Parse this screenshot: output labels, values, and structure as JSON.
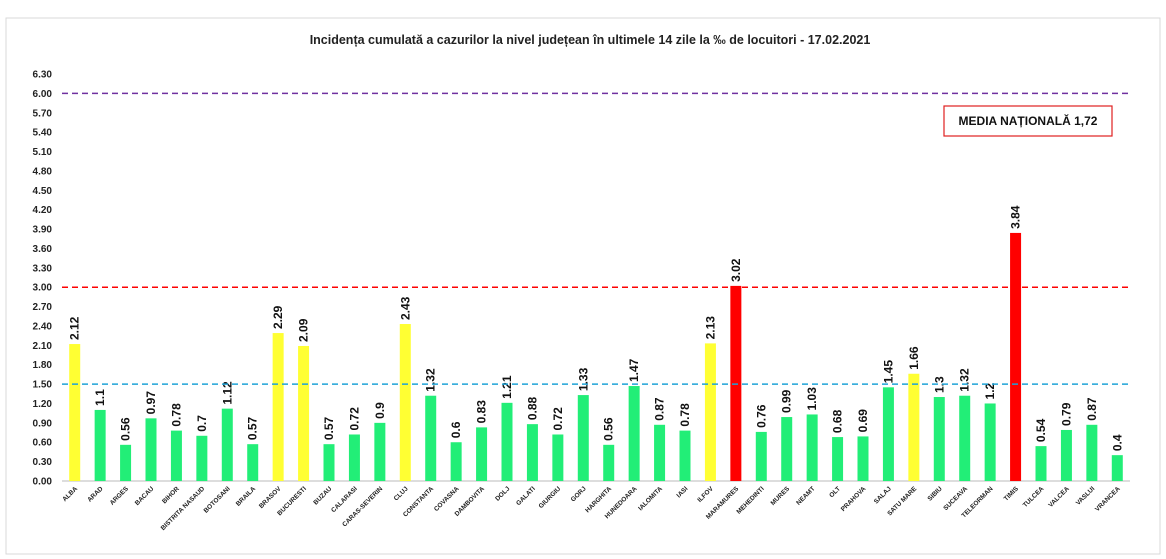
{
  "chart_data": {
    "type": "bar",
    "title": "Incidența cumulată a cazurilor la nivel județean în ultimele 14 zile la ‰ de locuitori - 17.02.2021",
    "categories": [
      "ALBA",
      "ARAD",
      "ARGES",
      "BACAU",
      "BIHOR",
      "BISTRITA NASAUD",
      "BOTOSANI",
      "BRAILA",
      "BRASOV",
      "BUCURESTI",
      "BUZAU",
      "CALARASI",
      "CARAS-SEVERIN",
      "CLUJ",
      "CONSTANTA",
      "COVASNA",
      "DAMBOVITA",
      "DOLJ",
      "GALATI",
      "GIURGIU",
      "GORJ",
      "HARGHITA",
      "HUNEDOARA",
      "IALOMITA",
      "IASI",
      "ILFOV",
      "MARAMURES",
      "MEHEDINTI",
      "MURES",
      "NEAMT",
      "OLT",
      "PRAHOVA",
      "SALAJ",
      "SATU MARE",
      "SIBIU",
      "SUCEAVA",
      "TELEORMAN",
      "TIMIS",
      "TULCEA",
      "VALCEA",
      "VASLUI",
      "VRANCEA"
    ],
    "values": [
      2.12,
      1.1,
      0.56,
      0.97,
      0.78,
      0.7,
      1.12,
      0.57,
      2.29,
      2.09,
      0.57,
      0.72,
      0.9,
      2.43,
      1.32,
      0.6,
      0.83,
      1.21,
      0.88,
      0.72,
      1.33,
      0.56,
      1.47,
      0.87,
      0.78,
      2.13,
      3.02,
      0.76,
      0.99,
      1.03,
      0.68,
      0.69,
      1.45,
      1.66,
      1.3,
      1.32,
      1.2,
      3.84,
      0.54,
      0.79,
      0.87,
      0.4
    ],
    "colors": [
      "#ffff33",
      "#22ee77",
      "#22ee77",
      "#22ee77",
      "#22ee77",
      "#22ee77",
      "#22ee77",
      "#22ee77",
      "#ffff33",
      "#ffff33",
      "#22ee77",
      "#22ee77",
      "#22ee77",
      "#ffff33",
      "#22ee77",
      "#22ee77",
      "#22ee77",
      "#22ee77",
      "#22ee77",
      "#22ee77",
      "#22ee77",
      "#22ee77",
      "#22ee77",
      "#22ee77",
      "#22ee77",
      "#ffff33",
      "#ff0000",
      "#22ee77",
      "#22ee77",
      "#22ee77",
      "#22ee77",
      "#22ee77",
      "#22ee77",
      "#ffff33",
      "#22ee77",
      "#22ee77",
      "#22ee77",
      "#ff0000",
      "#22ee77",
      "#22ee77",
      "#22ee77",
      "#22ee77"
    ],
    "ylim": [
      0,
      6.3
    ],
    "yticks": [
      {
        "value": 0,
        "label": "0.00"
      },
      {
        "value": 0.3,
        "label": "0.30"
      },
      {
        "value": 0.6,
        "label": "0.60"
      },
      {
        "value": 0.9,
        "label": "0.90"
      },
      {
        "value": 1.2,
        "label": "1.20"
      },
      {
        "value": 1.5,
        "label": "1.50"
      },
      {
        "value": 1.8,
        "label": "1.80"
      },
      {
        "value": 2.1,
        "label": "2.10"
      },
      {
        "value": 2.4,
        "label": "2.40"
      },
      {
        "value": 2.7,
        "label": "2.70"
      },
      {
        "value": 3,
        "label": "3.00"
      },
      {
        "value": 3.3,
        "label": "3.30"
      },
      {
        "value": 3.6,
        "label": "3.60"
      },
      {
        "value": 3.9,
        "label": "3.90"
      },
      {
        "value": 4.2,
        "label": "4.20"
      },
      {
        "value": 4.5,
        "label": "4.50"
      },
      {
        "value": 4.8,
        "label": "4.80"
      },
      {
        "value": 5.1,
        "label": "5.10"
      },
      {
        "value": 5.4,
        "label": "5.40"
      },
      {
        "value": 5.7,
        "label": "5.70"
      },
      {
        "value": 6,
        "label": "6.00"
      },
      {
        "value": 6.3,
        "label": "6.30"
      }
    ],
    "grid": false,
    "reference_lines": [
      {
        "value": 6,
        "color": "#7030a0"
      },
      {
        "value": 3,
        "color": "#ff0000"
      },
      {
        "value": 1.5,
        "color": "#1fa2d6"
      }
    ],
    "annotation": "MEDIA NAȚIONALĂ  1,72"
  }
}
